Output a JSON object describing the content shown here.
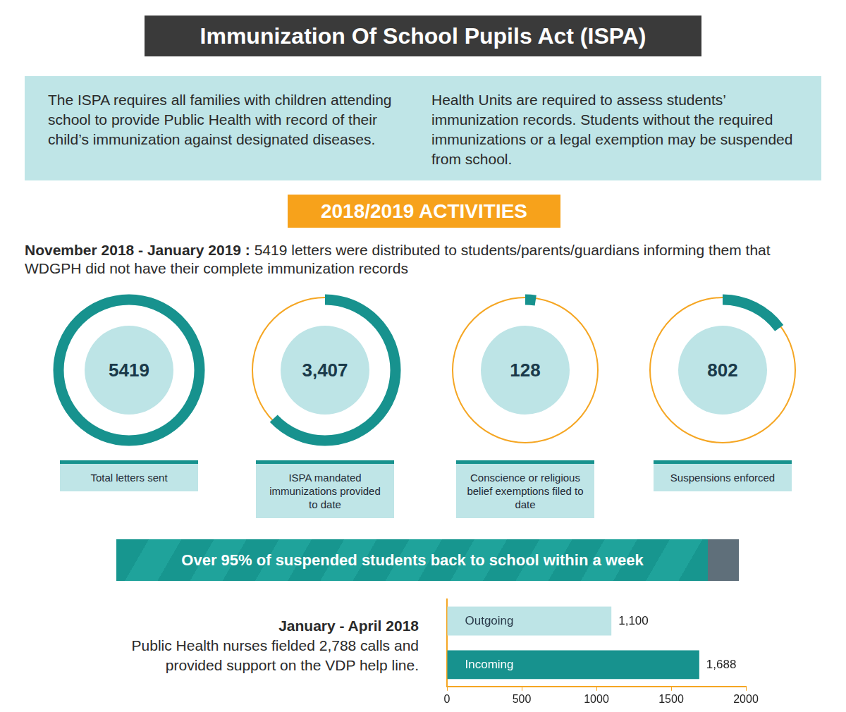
{
  "header": {
    "title": "Immunization Of School Pupils Act (ISPA)"
  },
  "intro": [
    "The ISPA requires all families with children attending school to provide Public Health with record of their child’s immunization against designated diseases.",
    "Health Units are required to assess students’ immunization records. Students without the required immunizations or a legal exemption may be suspended from school."
  ],
  "section_title": "2018/2019 ACTIVITIES",
  "letters_note": {
    "period": "November 2018 - January 2019 :",
    "text": "5419 letters were distributed to students/parents/guardians informing them that WDGPH did not have their complete immunization records"
  },
  "rings": [
    {
      "value": 5419,
      "label": "5419",
      "caption": "Total letters sent"
    },
    {
      "value": 3407,
      "label": "3,407",
      "caption": "ISPA mandated immunizations provided to date"
    },
    {
      "value": 128,
      "label": "128",
      "caption": "Conscience or religious belief exemptions filed to date"
    },
    {
      "value": 802,
      "label": "802",
      "caption": "Suspensions enforced"
    }
  ],
  "banner": {
    "value": 95,
    "text": "Over 95% of suspended students back to school within a week"
  },
  "calls_note": {
    "period": "January - April 2018",
    "text": "Public Health nurses fielded 2,788 calls and provided support on the VDP help line."
  },
  "chart_data": {
    "type": "bar",
    "orientation": "horizontal",
    "categories": [
      "Outgoing",
      "Incoming"
    ],
    "values": [
      1100,
      1688
    ],
    "value_labels": [
      "1,100",
      "1,688"
    ],
    "colors": [
      "#bde4e6",
      "#17928e"
    ],
    "xlim": [
      0,
      2000
    ],
    "xticks": [
      0,
      500,
      1000,
      1500,
      2000
    ],
    "grid": false,
    "data_labels": true,
    "tick_labels": "x"
  }
}
